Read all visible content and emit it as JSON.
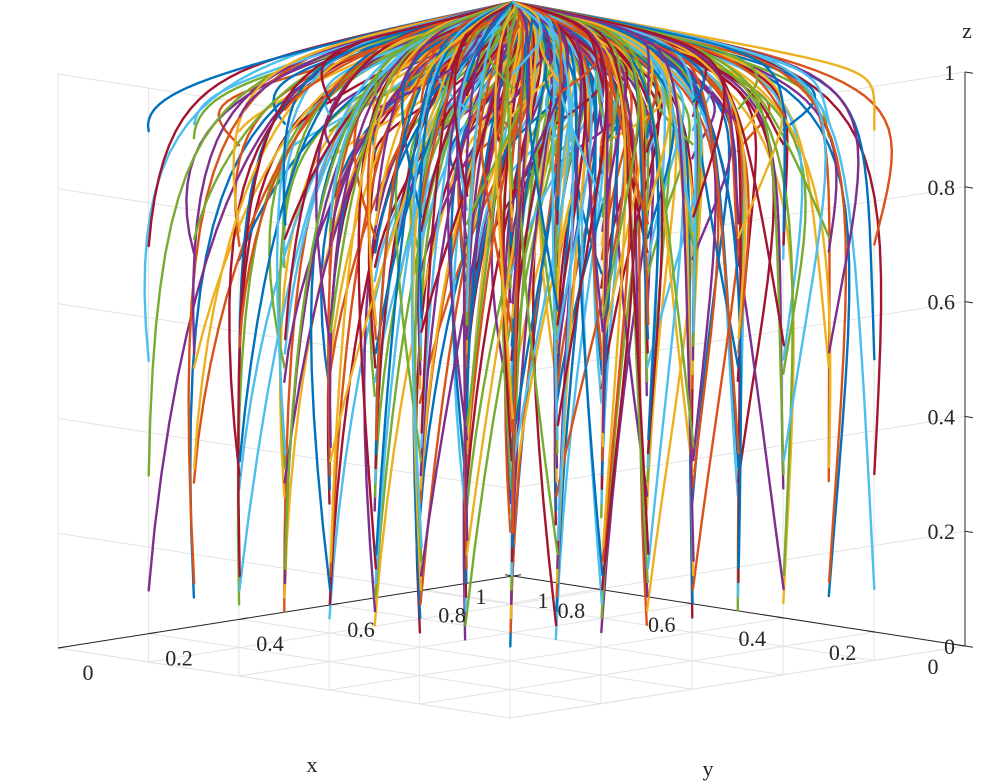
{
  "chart_data": {
    "type": "line3d",
    "xlabel": "x",
    "ylabel": "y",
    "zlabel": "z",
    "xlim": [
      0,
      1
    ],
    "ylim": [
      0,
      1
    ],
    "zlim": [
      0,
      1
    ],
    "x_ticks": [
      "0",
      "0.2",
      "0.4",
      "0.6",
      "0.8",
      "1"
    ],
    "y_ticks": [
      "0",
      "0.2",
      "0.4",
      "0.6",
      "0.8",
      "1"
    ],
    "z_ticks": [
      "0",
      "0.2",
      "0.4",
      "0.6",
      "0.8",
      "1"
    ],
    "grid": true,
    "convergence_point": [
      1,
      1,
      1
    ],
    "colors": [
      "#0072BD",
      "#D95319",
      "#EDB120",
      "#7E2F8E",
      "#77AC30",
      "#4DBEEE",
      "#A2142F"
    ],
    "initial_x": [
      0.1,
      0.2,
      0.3,
      0.4,
      0.5,
      0.6,
      0.7,
      0.8,
      0.9
    ],
    "initial_y": [
      0.1,
      0.2,
      0.3,
      0.4,
      0.5,
      0.6,
      0.7,
      0.8,
      0.9
    ],
    "initial_z": [
      0.1,
      0.3,
      0.5,
      0.7,
      0.9
    ],
    "series_count": 405
  }
}
